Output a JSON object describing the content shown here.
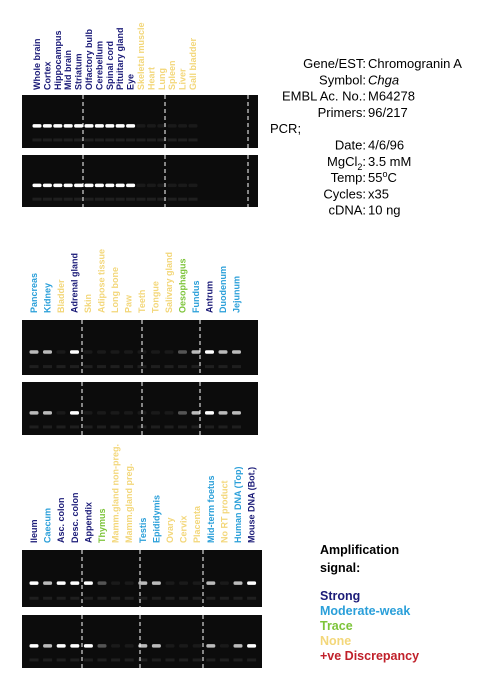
{
  "legend": {
    "title": "Amplification",
    "title2": "signal:",
    "items": [
      {
        "label": "Strong",
        "color": "#1b1b78"
      },
      {
        "label": "Moderate-weak",
        "color": "#2a9fd9"
      },
      {
        "label": "Trace",
        "color": "#7dc43a"
      },
      {
        "label": "None",
        "color": "#f3d77a"
      },
      {
        "label": "+ve Discrepancy",
        "color": "#c0202a"
      }
    ]
  },
  "info": [
    {
      "label": "Gene/EST:",
      "value": "Chromogranin A"
    },
    {
      "label": "Symbol:",
      "value": "Chga",
      "italic": true
    },
    {
      "label": "EMBL Ac. No.:",
      "value": "M64278"
    },
    {
      "label": "Primers:",
      "value": "96/217"
    },
    {
      "label": "PCR;"
    },
    {
      "label": "Date:",
      "value": "4/6/96"
    },
    {
      "label": "MgCl",
      "label_sub": "2",
      "label_end": ":",
      "value": "3.5 mM"
    },
    {
      "label": "Temp:",
      "value": "55",
      "value_sup": "o",
      "value_end": "C"
    },
    {
      "label": "Cycles:",
      "value": "x35"
    },
    {
      "label": "cDNA:",
      "value": "10 ng"
    }
  ],
  "panels": [
    {
      "lanes": [
        {
          "label": "Whole brain",
          "color": "#1b1b78"
        },
        {
          "label": "Cortex",
          "color": "#1b1b78"
        },
        {
          "label": "Hippocampus",
          "color": "#1b1b78"
        },
        {
          "label": "Mid brain",
          "color": "#1b1b78"
        },
        {
          "label": "Striatum",
          "color": "#1b1b78"
        },
        {
          "label": "Olfactory bulb",
          "color": "#1b1b78"
        },
        {
          "label": "Cerebellum",
          "color": "#1b1b78"
        },
        {
          "label": "Spinal cord",
          "color": "#1b1b78"
        },
        {
          "label": "Pituitary gland",
          "color": "#1b1b78"
        },
        {
          "label": "Eye",
          "color": "#1b1b78"
        },
        {
          "label": "Skeletal muscle",
          "color": "#f3d77a"
        },
        {
          "label": "Heart",
          "color": "#f3d77a"
        },
        {
          "label": "Lung",
          "color": "#f3d77a"
        },
        {
          "label": "Spleen",
          "color": "#f3d77a"
        },
        {
          "label": "Liver",
          "color": "#f3d77a"
        },
        {
          "label": "Gall bladder",
          "color": "#f3d77a"
        }
      ]
    },
    {
      "lanes": [
        {
          "label": "Pancreas",
          "color": "#2a9fd9"
        },
        {
          "label": "Kidney",
          "color": "#2a9fd9"
        },
        {
          "label": "Bladder",
          "color": "#f3d77a"
        },
        {
          "label": "Adrenal gland",
          "color": "#1b1b78"
        },
        {
          "label": "Skin",
          "color": "#f3d77a"
        },
        {
          "label": "Adipose tissue",
          "color": "#f3d77a"
        },
        {
          "label": "Long bone",
          "color": "#f3d77a"
        },
        {
          "label": "Paw",
          "color": "#f3d77a"
        },
        {
          "label": "Teeth",
          "color": "#f3d77a"
        },
        {
          "label": "Tongue",
          "color": "#f3d77a"
        },
        {
          "label": "Salivary gland",
          "color": "#f3d77a"
        },
        {
          "label": "Oesophagus",
          "color": "#7dc43a"
        },
        {
          "label": "Fundus",
          "color": "#2a9fd9"
        },
        {
          "label": "Antrum",
          "color": "#1b1b78"
        },
        {
          "label": "Duodenum",
          "color": "#2a9fd9"
        },
        {
          "label": "Jejunum",
          "color": "#2a9fd9"
        }
      ]
    },
    {
      "lanes": [
        {
          "label": "Ileum",
          "color": "#1b1b78"
        },
        {
          "label": "Caecum",
          "color": "#2a9fd9"
        },
        {
          "label": "Asc. colon",
          "color": "#1b1b78"
        },
        {
          "label": "Desc. colon",
          "color": "#1b1b78"
        },
        {
          "label": "Appendix",
          "color": "#1b1b78"
        },
        {
          "label": "Thymus",
          "color": "#7dc43a"
        },
        {
          "label": "Mamm.gland non-preg.",
          "color": "#f3d77a"
        },
        {
          "label": "Mamm.gland preg.",
          "color": "#f3d77a"
        },
        {
          "label": "Testis",
          "color": "#2a9fd9"
        },
        {
          "label": "Epididymis",
          "color": "#2a9fd9"
        },
        {
          "label": "Ovary",
          "color": "#f3d77a"
        },
        {
          "label": "Cervix",
          "color": "#f3d77a"
        },
        {
          "label": "Placenta",
          "color": "#f3d77a"
        },
        {
          "label": "Mid-term foetus",
          "color": "#2a9fd9"
        },
        {
          "label": "No RT product",
          "color": "#f3d77a"
        },
        {
          "label": "Human DNA (Top)",
          "color": "#2a9fd9"
        },
        {
          "label": "Mouse DNA (Bot.)",
          "color": "#1b1b78"
        }
      ]
    }
  ]
}
